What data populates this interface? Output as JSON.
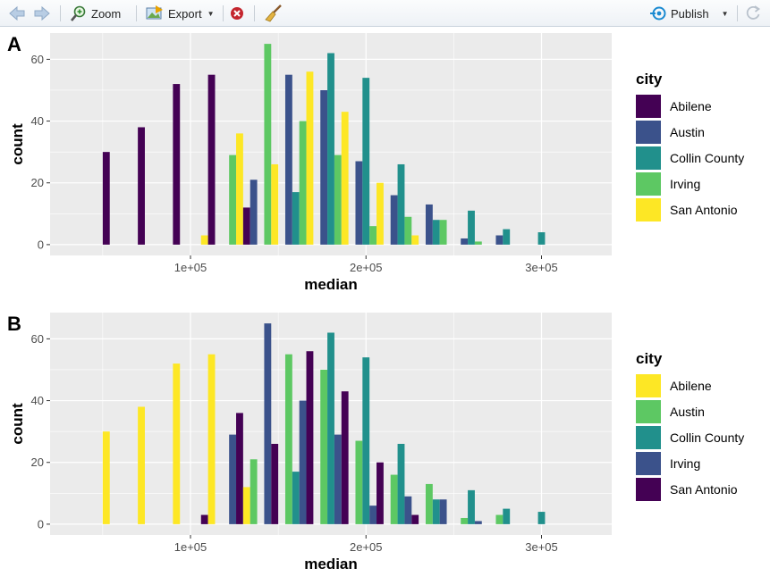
{
  "toolbar": {
    "back_icon": "arrow-left-icon",
    "forward_icon": "arrow-right-icon",
    "zoom_label": "Zoom",
    "export_label": "Export",
    "remove_icon": "remove-plot-icon",
    "clear_icon": "broom-icon",
    "publish_label": "Publish",
    "refresh_icon": "refresh-icon"
  },
  "colors": {
    "panel_bg": "#ebebeb",
    "grid": "#ffffff",
    "viridis": [
      "#440154",
      "#3b528b",
      "#21908c",
      "#5dc863",
      "#fde725"
    ]
  },
  "chart_data": [
    {
      "type": "bar",
      "tag": "A",
      "xlabel": "median",
      "ylabel": "count",
      "xlim": [
        20000,
        340000
      ],
      "ylim": [
        -3.5,
        68.5
      ],
      "xticks": [
        100000,
        200000,
        300000
      ],
      "xtick_labels": [
        "1e+05",
        "2e+05",
        "3e+05"
      ],
      "yticks": [
        0,
        20,
        40,
        60
      ],
      "ytick_labels": [
        "0",
        "20",
        "40",
        "60"
      ],
      "bin_width": 20000,
      "bins": [
        60000,
        80000,
        100000,
        120000,
        140000,
        160000,
        180000,
        200000,
        220000,
        240000,
        260000,
        280000,
        300000
      ],
      "legend": {
        "title": "city",
        "position": "right"
      },
      "series": [
        {
          "name": "Abilene",
          "color": "#440154",
          "values": [
            30,
            38,
            52,
            55,
            12,
            0,
            0,
            0,
            0,
            0,
            0,
            0,
            0
          ]
        },
        {
          "name": "Austin",
          "color": "#3b528b",
          "values": [
            0,
            0,
            0,
            0,
            21,
            55,
            50,
            27,
            16,
            13,
            2,
            3,
            0
          ]
        },
        {
          "name": "Collin County",
          "color": "#21908c",
          "values": [
            0,
            0,
            0,
            0,
            0,
            17,
            62,
            54,
            26,
            8,
            11,
            5,
            4
          ]
        },
        {
          "name": "Irving",
          "color": "#5dc863",
          "values": [
            0,
            0,
            0,
            29,
            65,
            40,
            29,
            6,
            9,
            8,
            1,
            0,
            0
          ]
        },
        {
          "name": "San Antonio",
          "color": "#fde725",
          "values": [
            0,
            0,
            3,
            36,
            26,
            56,
            43,
            20,
            3,
            0,
            0,
            0,
            0
          ]
        }
      ]
    },
    {
      "type": "bar",
      "tag": "B",
      "xlabel": "median",
      "ylabel": "count",
      "xlim": [
        20000,
        340000
      ],
      "ylim": [
        -3.5,
        68.5
      ],
      "xticks": [
        100000,
        200000,
        300000
      ],
      "xtick_labels": [
        "1e+05",
        "2e+05",
        "3e+05"
      ],
      "yticks": [
        0,
        20,
        40,
        60
      ],
      "ytick_labels": [
        "0",
        "20",
        "40",
        "60"
      ],
      "bin_width": 20000,
      "bins": [
        60000,
        80000,
        100000,
        120000,
        140000,
        160000,
        180000,
        200000,
        220000,
        240000,
        260000,
        280000,
        300000
      ],
      "legend": {
        "title": "city",
        "position": "right"
      },
      "series": [
        {
          "name": "Abilene",
          "color": "#fde725",
          "values": [
            30,
            38,
            52,
            55,
            12,
            0,
            0,
            0,
            0,
            0,
            0,
            0,
            0
          ]
        },
        {
          "name": "Austin",
          "color": "#5dc863",
          "values": [
            0,
            0,
            0,
            0,
            21,
            55,
            50,
            27,
            16,
            13,
            2,
            3,
            0
          ]
        },
        {
          "name": "Collin County",
          "color": "#21908c",
          "values": [
            0,
            0,
            0,
            0,
            0,
            17,
            62,
            54,
            26,
            8,
            11,
            5,
            4
          ]
        },
        {
          "name": "Irving",
          "color": "#3b528b",
          "values": [
            0,
            0,
            0,
            29,
            65,
            40,
            29,
            6,
            9,
            8,
            1,
            0,
            0
          ]
        },
        {
          "name": "San Antonio",
          "color": "#440154",
          "values": [
            0,
            0,
            3,
            36,
            26,
            56,
            43,
            20,
            3,
            0,
            0,
            0,
            0
          ]
        }
      ]
    }
  ]
}
